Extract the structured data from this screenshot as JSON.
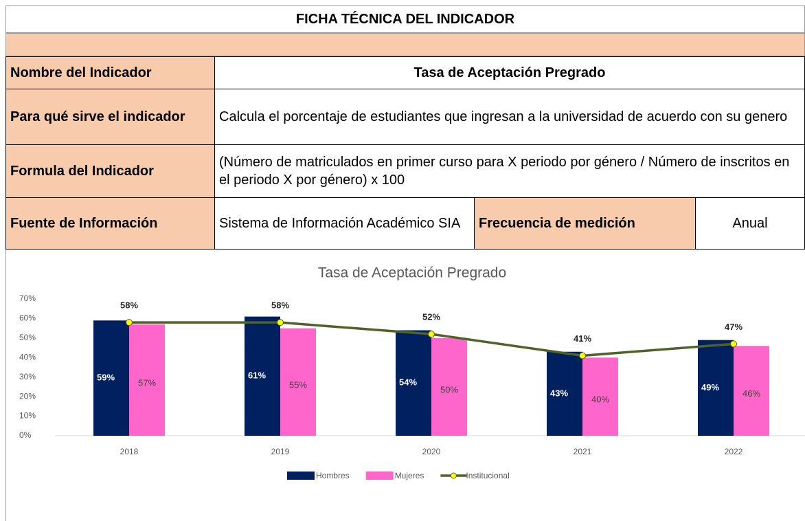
{
  "table": {
    "title": "FICHA TÉCNICA DEL INDICADOR",
    "rows": [
      [
        "Nombre del Indicador",
        "Tasa de Aceptación Pregrado"
      ],
      [
        "Para qué sirve el indicador",
        "Calcula el porcentaje de estudiantes que ingresan a la universidad de acuerdo con su genero"
      ],
      [
        "Formula del Indicador",
        "(Número de matriculados en primer curso para X periodo por género / Número de inscritos en el periodo X por género) x 100"
      ],
      [
        "Fuente de Información",
        "Sistema de Información Académico SIA",
        "Frecuencia de medición",
        "Anual"
      ]
    ]
  },
  "chart_data": {
    "type": "bar",
    "title": "Tasa de Aceptación Pregrado",
    "categories": [
      "2018",
      "2019",
      "2020",
      "2021",
      "2022"
    ],
    "series": [
      {
        "name": "Hombres",
        "color": "#002060",
        "values": [
          59,
          61,
          54,
          43,
          49
        ],
        "value_labels": [
          "59%",
          "61%",
          "54%",
          "43%",
          "49%"
        ]
      },
      {
        "name": "Mujeres",
        "color": "#ff66cc",
        "values": [
          57,
          55,
          50,
          40,
          46
        ],
        "value_labels": [
          "57%",
          "55%",
          "50%",
          "40%",
          "46%"
        ]
      },
      {
        "name": "Institucional",
        "type": "line",
        "color": "#4f6228",
        "marker_color": "#ffff00",
        "values": [
          58,
          58,
          52,
          41,
          47
        ],
        "value_labels": [
          "58%",
          "58%",
          "52%",
          "41%",
          "47%"
        ]
      }
    ],
    "ylim": [
      0,
      70
    ],
    "yticks": [
      {
        "value": 0,
        "label": "0%"
      },
      {
        "value": 10,
        "label": "10%"
      },
      {
        "value": 20,
        "label": "20%"
      },
      {
        "value": 30,
        "label": "30%"
      },
      {
        "value": 40,
        "label": "40%"
      },
      {
        "value": 50,
        "label": "50%"
      },
      {
        "value": 60,
        "label": "60%"
      },
      {
        "value": 70,
        "label": "70%"
      }
    ],
    "legend": "bottom"
  }
}
